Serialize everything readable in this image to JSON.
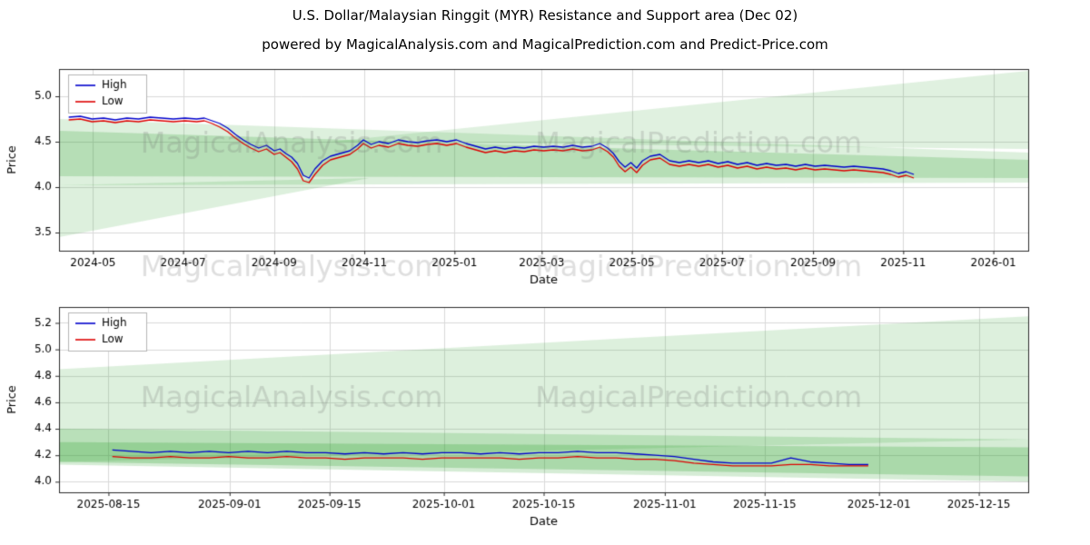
{
  "title": "U.S. Dollar/Malaysian Ringgit (MYR) Resistance and Support area (Dec 02)",
  "subtitle": "powered by MagicalAnalysis.com and MagicalPrediction.com and Predict-Price.com",
  "colors": {
    "high_line": "#0000cc",
    "low_line": "#dd0000",
    "band_green": "44,160,44",
    "grid": "#d9d9d9",
    "spine": "#2b2b2b",
    "watermark": "rgba(110,110,110,0.22)"
  },
  "chart_data": [
    {
      "type": "line",
      "xlabel": "Date",
      "ylabel": "Price",
      "ylim": [
        3.3,
        5.3
      ],
      "yticks": [
        {
          "v": 3.5,
          "label": "3.5"
        },
        {
          "v": 4.0,
          "label": "4.0"
        },
        {
          "v": 4.5,
          "label": "4.5"
        },
        {
          "v": 5.0,
          "label": "5.0"
        }
      ],
      "xticks": [
        {
          "t": 0.035,
          "label": "2024-05"
        },
        {
          "t": 0.128,
          "label": "2024-07"
        },
        {
          "t": 0.222,
          "label": "2024-09"
        },
        {
          "t": 0.315,
          "label": "2024-11"
        },
        {
          "t": 0.408,
          "label": "2025-01"
        },
        {
          "t": 0.498,
          "label": "2025-03"
        },
        {
          "t": 0.591,
          "label": "2025-05"
        },
        {
          "t": 0.684,
          "label": "2025-07"
        },
        {
          "t": 0.778,
          "label": "2025-09"
        },
        {
          "t": 0.871,
          "label": "2025-11"
        },
        {
          "t": 0.964,
          "label": "2026-01"
        }
      ],
      "legend": [
        {
          "label": "High",
          "color": "#0000cc"
        },
        {
          "label": "Low",
          "color": "#dd0000"
        }
      ],
      "watermarks": [
        {
          "text": "MagicalAnalysis.com",
          "tx": 0.24,
          "ty": 0.42
        },
        {
          "text": "MagicalPrediction.com",
          "tx": 0.66,
          "ty": 0.42
        },
        {
          "text": "MagicalAnalysis.com",
          "tx": 0.24,
          "ty": 1.1
        },
        {
          "text": "MagicalPrediction.com",
          "tx": 0.66,
          "ty": 1.1
        }
      ],
      "polygons": [
        {
          "alpha": 0.16,
          "points": [
            [
              0,
              4.02
            ],
            [
              0,
              4.75
            ],
            [
              1,
              4.38
            ],
            [
              1,
              4.05
            ]
          ]
        },
        {
          "alpha": 0.16,
          "points": [
            [
              0,
              3.45
            ],
            [
              0,
              4.02
            ],
            [
              0.32,
              4.1
            ]
          ]
        },
        {
          "alpha": 0.22,
          "points": [
            [
              0,
              4.12
            ],
            [
              0,
              4.62
            ],
            [
              0.6,
              4.42
            ],
            [
              1,
              4.3
            ],
            [
              1,
              4.1
            ]
          ]
        },
        {
          "alpha": 0.15,
          "points": [
            [
              0.28,
              4.5
            ],
            [
              1,
              5.28
            ],
            [
              1,
              4.42
            ]
          ]
        }
      ],
      "x": [
        0.01,
        0.022,
        0.034,
        0.046,
        0.058,
        0.07,
        0.082,
        0.094,
        0.106,
        0.118,
        0.13,
        0.142,
        0.15,
        0.158,
        0.166,
        0.174,
        0.182,
        0.19,
        0.198,
        0.206,
        0.214,
        0.222,
        0.228,
        0.234,
        0.24,
        0.246,
        0.252,
        0.258,
        0.264,
        0.272,
        0.28,
        0.29,
        0.3,
        0.308,
        0.314,
        0.322,
        0.33,
        0.34,
        0.35,
        0.36,
        0.37,
        0.38,
        0.39,
        0.4,
        0.41,
        0.42,
        0.43,
        0.44,
        0.45,
        0.46,
        0.47,
        0.48,
        0.49,
        0.5,
        0.51,
        0.52,
        0.53,
        0.54,
        0.55,
        0.558,
        0.566,
        0.572,
        0.578,
        0.584,
        0.59,
        0.596,
        0.602,
        0.61,
        0.62,
        0.63,
        0.64,
        0.65,
        0.66,
        0.67,
        0.68,
        0.69,
        0.7,
        0.71,
        0.72,
        0.73,
        0.74,
        0.75,
        0.76,
        0.77,
        0.78,
        0.79,
        0.8,
        0.81,
        0.82,
        0.83,
        0.84,
        0.85,
        0.858,
        0.866,
        0.874,
        0.882
      ],
      "series": [
        {
          "name": "High",
          "color": "#0000cc",
          "values": [
            4.77,
            4.78,
            4.75,
            4.76,
            4.74,
            4.76,
            4.75,
            4.77,
            4.76,
            4.75,
            4.76,
            4.75,
            4.76,
            4.73,
            4.7,
            4.65,
            4.58,
            4.52,
            4.47,
            4.43,
            4.46,
            4.4,
            4.42,
            4.37,
            4.33,
            4.26,
            4.13,
            4.1,
            4.2,
            4.29,
            4.34,
            4.37,
            4.4,
            4.46,
            4.52,
            4.47,
            4.5,
            4.48,
            4.52,
            4.5,
            4.49,
            4.51,
            4.52,
            4.5,
            4.52,
            4.48,
            4.45,
            4.42,
            4.44,
            4.42,
            4.44,
            4.43,
            4.45,
            4.44,
            4.45,
            4.44,
            4.46,
            4.44,
            4.45,
            4.48,
            4.43,
            4.37,
            4.28,
            4.22,
            4.27,
            4.21,
            4.29,
            4.34,
            4.36,
            4.29,
            4.27,
            4.29,
            4.27,
            4.29,
            4.26,
            4.28,
            4.25,
            4.27,
            4.24,
            4.26,
            4.24,
            4.25,
            4.23,
            4.25,
            4.23,
            4.24,
            4.23,
            4.22,
            4.23,
            4.22,
            4.21,
            4.2,
            4.18,
            4.15,
            4.17,
            4.14
          ]
        },
        {
          "name": "Low",
          "color": "#dd0000",
          "values": [
            4.74,
            4.75,
            4.72,
            4.73,
            4.71,
            4.73,
            4.72,
            4.74,
            4.73,
            4.72,
            4.73,
            4.72,
            4.73,
            4.7,
            4.66,
            4.61,
            4.54,
            4.48,
            4.43,
            4.39,
            4.42,
            4.36,
            4.38,
            4.33,
            4.28,
            4.2,
            4.07,
            4.05,
            4.14,
            4.24,
            4.3,
            4.33,
            4.36,
            4.42,
            4.48,
            4.43,
            4.46,
            4.44,
            4.48,
            4.46,
            4.45,
            4.47,
            4.48,
            4.46,
            4.48,
            4.44,
            4.41,
            4.38,
            4.4,
            4.38,
            4.4,
            4.39,
            4.41,
            4.4,
            4.41,
            4.4,
            4.42,
            4.4,
            4.41,
            4.44,
            4.39,
            4.33,
            4.23,
            4.17,
            4.22,
            4.16,
            4.24,
            4.3,
            4.32,
            4.25,
            4.23,
            4.25,
            4.23,
            4.25,
            4.22,
            4.24,
            4.21,
            4.23,
            4.2,
            4.22,
            4.2,
            4.21,
            4.19,
            4.21,
            4.19,
            4.2,
            4.19,
            4.18,
            4.19,
            4.18,
            4.17,
            4.16,
            4.14,
            4.11,
            4.13,
            4.1
          ]
        }
      ]
    },
    {
      "type": "line",
      "xlabel": "Date",
      "ylabel": "Price",
      "ylim": [
        3.92,
        5.32
      ],
      "yticks": [
        {
          "v": 4.0,
          "label": "4.0"
        },
        {
          "v": 4.2,
          "label": "4.2"
        },
        {
          "v": 4.4,
          "label": "4.4"
        },
        {
          "v": 4.6,
          "label": "4.6"
        },
        {
          "v": 4.8,
          "label": "4.8"
        },
        {
          "v": 5.0,
          "label": "5.0"
        },
        {
          "v": 5.2,
          "label": "5.2"
        }
      ],
      "xticks": [
        {
          "t": 0.051,
          "label": "2025-08-15"
        },
        {
          "t": 0.176,
          "label": "2025-09-01"
        },
        {
          "t": 0.279,
          "label": "2025-09-15"
        },
        {
          "t": 0.397,
          "label": "2025-10-01"
        },
        {
          "t": 0.5,
          "label": "2025-10-15"
        },
        {
          "t": 0.625,
          "label": "2025-11-01"
        },
        {
          "t": 0.728,
          "label": "2025-11-15"
        },
        {
          "t": 0.846,
          "label": "2025-12-01"
        },
        {
          "t": 0.949,
          "label": "2025-12-15"
        }
      ],
      "legend": [
        {
          "label": "High",
          "color": "#0000cc"
        },
        {
          "label": "Low",
          "color": "#dd0000"
        }
      ],
      "watermarks": [
        {
          "text": "MagicalAnalysis.com",
          "tx": 0.24,
          "ty": 0.5
        },
        {
          "text": "MagicalPrediction.com",
          "tx": 0.66,
          "ty": 0.5
        }
      ],
      "polygons": [
        {
          "alpha": 0.16,
          "points": [
            [
              0,
              4.15
            ],
            [
              0,
              4.85
            ],
            [
              1,
              5.25
            ],
            [
              1,
              4.32
            ]
          ]
        },
        {
          "alpha": 0.2,
          "points": [
            [
              0,
              4.13
            ],
            [
              0,
              4.4
            ],
            [
              1,
              4.32
            ],
            [
              1,
              4.0
            ]
          ]
        },
        {
          "alpha": 0.25,
          "points": [
            [
              0,
              4.15
            ],
            [
              0,
              4.3
            ],
            [
              1,
              4.26
            ],
            [
              1,
              4.04
            ]
          ]
        }
      ],
      "x": [
        0.055,
        0.075,
        0.095,
        0.115,
        0.135,
        0.155,
        0.175,
        0.195,
        0.215,
        0.235,
        0.255,
        0.275,
        0.295,
        0.315,
        0.335,
        0.355,
        0.375,
        0.395,
        0.415,
        0.435,
        0.455,
        0.475,
        0.495,
        0.515,
        0.535,
        0.555,
        0.575,
        0.595,
        0.615,
        0.635,
        0.655,
        0.675,
        0.695,
        0.715,
        0.735,
        0.755,
        0.775,
        0.795,
        0.815,
        0.835
      ],
      "series": [
        {
          "name": "High",
          "color": "#0000cc",
          "values": [
            4.24,
            4.23,
            4.22,
            4.23,
            4.22,
            4.23,
            4.22,
            4.23,
            4.22,
            4.23,
            4.22,
            4.22,
            4.21,
            4.22,
            4.21,
            4.22,
            4.21,
            4.22,
            4.22,
            4.21,
            4.22,
            4.21,
            4.22,
            4.22,
            4.23,
            4.22,
            4.22,
            4.21,
            4.2,
            4.19,
            4.17,
            4.15,
            4.14,
            4.14,
            4.14,
            4.18,
            4.15,
            4.14,
            4.13,
            4.13
          ]
        },
        {
          "name": "Low",
          "color": "#dd0000",
          "values": [
            4.19,
            4.18,
            4.18,
            4.19,
            4.18,
            4.18,
            4.19,
            4.18,
            4.18,
            4.19,
            4.18,
            4.18,
            4.17,
            4.18,
            4.18,
            4.18,
            4.17,
            4.18,
            4.18,
            4.18,
            4.18,
            4.17,
            4.18,
            4.18,
            4.19,
            4.18,
            4.18,
            4.17,
            4.17,
            4.16,
            4.14,
            4.13,
            4.12,
            4.12,
            4.12,
            4.13,
            4.13,
            4.12,
            4.12,
            4.12
          ]
        }
      ]
    }
  ]
}
